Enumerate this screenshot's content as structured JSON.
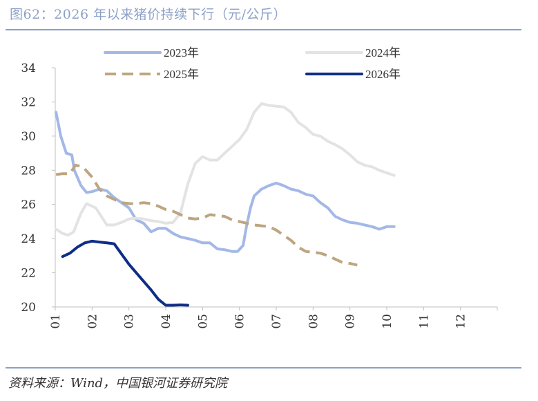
{
  "title": "图62：2026 年以来猪价持续下行（元/公斤）",
  "source": "资料来源：Wind，中国银河证券研究院",
  "colors": {
    "s2023": "#a3b8e6",
    "s2024": "#e3e3e3",
    "s2025": "#bca580",
    "s2026": "#0d2e86",
    "rule": "#8a9fc6",
    "title": "#8da1c8"
  },
  "chart_data": {
    "type": "line",
    "ylim": [
      20,
      34
    ],
    "yticks": [
      "20",
      "22",
      "24",
      "26",
      "28",
      "30",
      "32",
      "34"
    ],
    "xticks": [
      "01",
      "02",
      "03",
      "04",
      "05",
      "06",
      "07",
      "08",
      "09",
      "10",
      "11",
      "12"
    ],
    "xlim": [
      1,
      13
    ],
    "legend_position": "top",
    "series": [
      {
        "name": "2023年",
        "key": "s2023",
        "style": "solid",
        "points": [
          [
            1.02,
            31.4
          ],
          [
            1.15,
            30.0
          ],
          [
            1.3,
            29.0
          ],
          [
            1.45,
            28.9
          ],
          [
            1.52,
            28.0
          ],
          [
            1.7,
            27.1
          ],
          [
            1.85,
            26.7
          ],
          [
            2.0,
            26.75
          ],
          [
            2.2,
            26.9
          ],
          [
            2.4,
            26.8
          ],
          [
            2.6,
            26.4
          ],
          [
            2.8,
            26.1
          ],
          [
            3.0,
            25.8
          ],
          [
            3.2,
            25.1
          ],
          [
            3.4,
            24.9
          ],
          [
            3.6,
            24.4
          ],
          [
            3.8,
            24.6
          ],
          [
            4.0,
            24.6
          ],
          [
            4.2,
            24.3
          ],
          [
            4.4,
            24.1
          ],
          [
            4.6,
            24.0
          ],
          [
            4.8,
            23.9
          ],
          [
            5.0,
            23.75
          ],
          [
            5.2,
            23.75
          ],
          [
            5.4,
            23.4
          ],
          [
            5.6,
            23.35
          ],
          [
            5.8,
            23.25
          ],
          [
            5.95,
            23.25
          ],
          [
            6.1,
            23.6
          ],
          [
            6.2,
            24.8
          ],
          [
            6.3,
            25.8
          ],
          [
            6.4,
            26.5
          ],
          [
            6.6,
            26.9
          ],
          [
            6.8,
            27.1
          ],
          [
            7.0,
            27.25
          ],
          [
            7.2,
            27.1
          ],
          [
            7.4,
            26.9
          ],
          [
            7.6,
            26.8
          ],
          [
            7.8,
            26.6
          ],
          [
            8.0,
            26.5
          ],
          [
            8.2,
            26.1
          ],
          [
            8.4,
            25.8
          ],
          [
            8.6,
            25.3
          ],
          [
            8.8,
            25.1
          ],
          [
            9.0,
            24.95
          ],
          [
            9.2,
            24.9
          ],
          [
            9.4,
            24.8
          ],
          [
            9.6,
            24.7
          ],
          [
            9.8,
            24.55
          ],
          [
            10.0,
            24.7
          ],
          [
            10.2,
            24.7
          ]
        ]
      },
      {
        "name": "2024年",
        "key": "s2024",
        "style": "solid",
        "points": [
          [
            1.02,
            24.55
          ],
          [
            1.2,
            24.3
          ],
          [
            1.35,
            24.2
          ],
          [
            1.5,
            24.4
          ],
          [
            1.7,
            25.5
          ],
          [
            1.85,
            26.05
          ],
          [
            2.1,
            25.8
          ],
          [
            2.4,
            24.8
          ],
          [
            2.6,
            24.8
          ],
          [
            2.8,
            24.95
          ],
          [
            3.0,
            25.15
          ],
          [
            3.2,
            25.2
          ],
          [
            3.4,
            25.15
          ],
          [
            3.6,
            25.05
          ],
          [
            3.8,
            25.0
          ],
          [
            4.0,
            24.9
          ],
          [
            4.2,
            24.95
          ],
          [
            4.4,
            25.5
          ],
          [
            4.6,
            27.2
          ],
          [
            4.8,
            28.4
          ],
          [
            5.0,
            28.8
          ],
          [
            5.2,
            28.6
          ],
          [
            5.4,
            28.6
          ],
          [
            5.6,
            29.0
          ],
          [
            5.8,
            29.4
          ],
          [
            6.0,
            29.8
          ],
          [
            6.2,
            30.4
          ],
          [
            6.4,
            31.4
          ],
          [
            6.6,
            31.9
          ],
          [
            6.8,
            31.8
          ],
          [
            7.0,
            31.75
          ],
          [
            7.2,
            31.7
          ],
          [
            7.4,
            31.4
          ],
          [
            7.6,
            30.8
          ],
          [
            7.8,
            30.5
          ],
          [
            8.0,
            30.1
          ],
          [
            8.2,
            30.0
          ],
          [
            8.4,
            29.7
          ],
          [
            8.6,
            29.5
          ],
          [
            8.8,
            29.25
          ],
          [
            9.0,
            28.9
          ],
          [
            9.2,
            28.5
          ],
          [
            9.4,
            28.3
          ],
          [
            9.6,
            28.2
          ],
          [
            9.8,
            28.0
          ],
          [
            10.0,
            27.85
          ],
          [
            10.2,
            27.7
          ]
        ]
      },
      {
        "name": "2025年",
        "key": "s2025",
        "style": "dashed",
        "points": [
          [
            1.02,
            27.75
          ],
          [
            1.2,
            27.8
          ],
          [
            1.4,
            27.8
          ],
          [
            1.55,
            28.3
          ],
          [
            1.75,
            28.2
          ],
          [
            2.0,
            27.6
          ],
          [
            2.2,
            26.9
          ],
          [
            2.4,
            26.5
          ],
          [
            2.6,
            26.3
          ],
          [
            2.8,
            26.1
          ],
          [
            3.0,
            26.05
          ],
          [
            3.2,
            26.05
          ],
          [
            3.4,
            26.1
          ],
          [
            3.6,
            26.05
          ],
          [
            3.8,
            25.9
          ],
          [
            4.0,
            25.7
          ],
          [
            4.2,
            25.6
          ],
          [
            4.4,
            25.4
          ],
          [
            4.6,
            25.2
          ],
          [
            4.8,
            25.15
          ],
          [
            5.0,
            25.2
          ],
          [
            5.2,
            25.4
          ],
          [
            5.4,
            25.35
          ],
          [
            5.6,
            25.3
          ],
          [
            5.8,
            25.1
          ],
          [
            6.0,
            25.0
          ],
          [
            6.2,
            24.9
          ],
          [
            6.4,
            24.8
          ],
          [
            6.6,
            24.75
          ],
          [
            6.8,
            24.7
          ],
          [
            7.0,
            24.5
          ],
          [
            7.2,
            24.2
          ],
          [
            7.4,
            23.9
          ],
          [
            7.6,
            23.5
          ],
          [
            7.8,
            23.25
          ],
          [
            8.0,
            23.2
          ],
          [
            8.2,
            23.15
          ],
          [
            8.4,
            23.0
          ],
          [
            8.6,
            22.8
          ],
          [
            8.8,
            22.6
          ],
          [
            9.0,
            22.55
          ],
          [
            9.2,
            22.45
          ]
        ]
      },
      {
        "name": "2026年",
        "key": "s2026",
        "style": "solid",
        "points": [
          [
            1.2,
            22.95
          ],
          [
            1.4,
            23.15
          ],
          [
            1.6,
            23.5
          ],
          [
            1.8,
            23.75
          ],
          [
            2.0,
            23.85
          ],
          [
            2.2,
            23.8
          ],
          [
            2.4,
            23.75
          ],
          [
            2.6,
            23.7
          ],
          [
            2.8,
            23.1
          ],
          [
            3.0,
            22.5
          ],
          [
            3.2,
            22.0
          ],
          [
            3.4,
            21.5
          ],
          [
            3.6,
            21.0
          ],
          [
            3.8,
            20.45
          ],
          [
            4.0,
            20.1
          ],
          [
            4.2,
            20.1
          ],
          [
            4.4,
            20.12
          ],
          [
            4.6,
            20.1
          ]
        ]
      }
    ]
  }
}
